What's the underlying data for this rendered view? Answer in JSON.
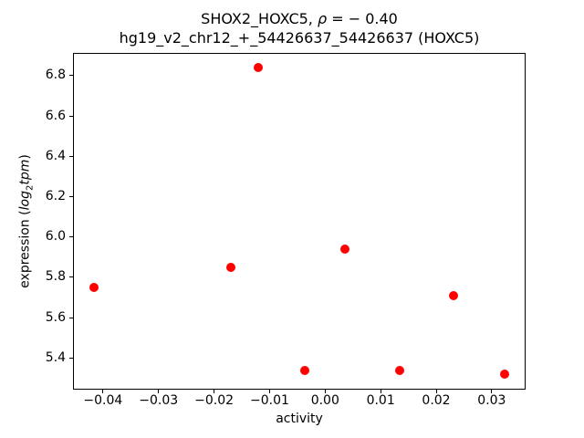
{
  "figure": {
    "background": "#ffffff",
    "text_color": "#000000"
  },
  "chart_data": {
    "type": "scatter",
    "title": "SHOX2_HOXC5, ρ = −0.40",
    "title_parts": {
      "prefix": "SHOX2_HOXC5, ",
      "rho": "ρ",
      "suffix": " = − 0.40"
    },
    "subtitle": "hg19_v2_chr12_+_54426637_54426637 (HOXC5)",
    "xlabel": "activity",
    "ylabel": "expression (log₂tpm)",
    "ylabel_parts": {
      "prefix": "expression (",
      "log": "log",
      "sub": "2",
      "var": "tpm",
      "suffix": ")"
    },
    "series": [
      {
        "name": "samples",
        "marker": "circle",
        "color": "#ff0000",
        "marker_size_px": 10,
        "x": [
          -0.0417,
          -0.0169,
          -0.012,
          -0.0036,
          0.0036,
          0.0134,
          0.0232,
          0.0323
        ],
        "y": [
          5.75,
          5.85,
          6.84,
          5.34,
          5.94,
          5.34,
          5.71,
          5.32
        ]
      }
    ],
    "xlim": [
      -0.0454,
      0.0361
    ],
    "ylim": [
      5.242,
      6.914
    ],
    "xticks": [
      -0.04,
      -0.03,
      -0.02,
      -0.01,
      0.0,
      0.01,
      0.02,
      0.03
    ],
    "xtick_labels": [
      "−0.04",
      "−0.03",
      "−0.02",
      "−0.01",
      "0.00",
      "0.01",
      "0.02",
      "0.03"
    ],
    "yticks": [
      5.4,
      5.6,
      5.8,
      6.0,
      6.2,
      6.4,
      6.6,
      6.8
    ],
    "ytick_labels": [
      "5.4",
      "5.6",
      "5.8",
      "6.0",
      "6.2",
      "6.4",
      "6.6",
      "6.8"
    ],
    "grid": false,
    "legend": "none",
    "frame": true
  }
}
